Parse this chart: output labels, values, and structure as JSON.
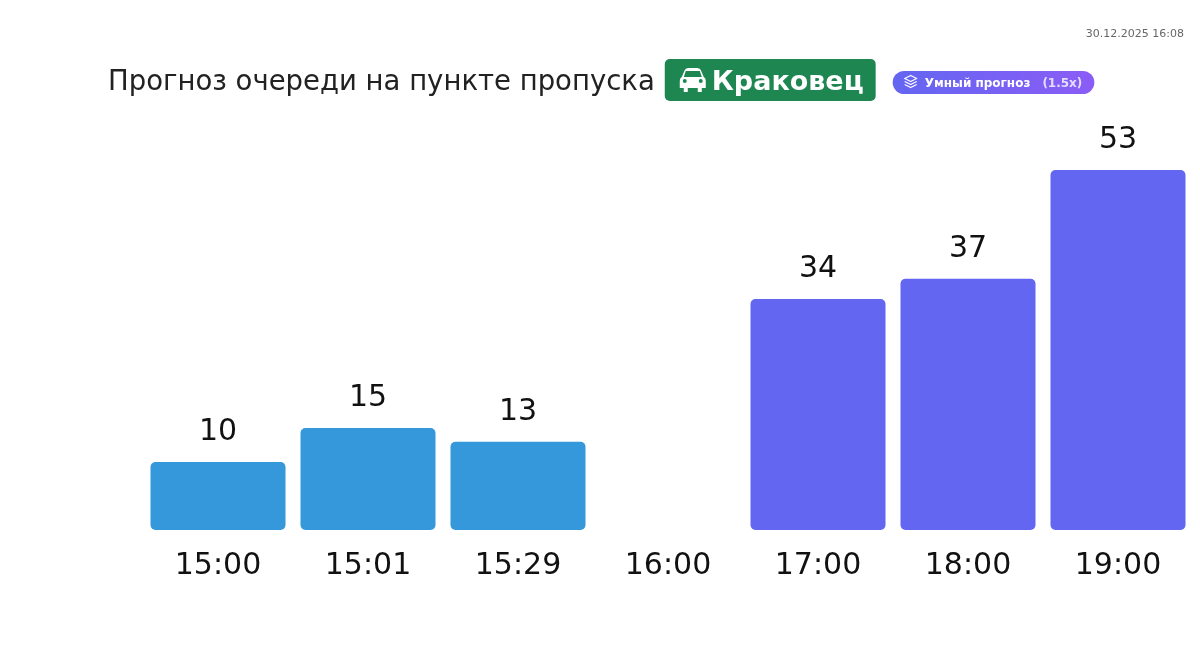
{
  "chart_data": {
    "type": "bar",
    "title": "Прогноз очереди на пункте пропуска",
    "subtitle": "Краковец",
    "annotations": [
      "Умный прогноз",
      "(1.5x)",
      "30.12.2025 16:08"
    ],
    "categories": [
      "15:00",
      "15:01",
      "15:29",
      "16:00",
      "17:00",
      "18:00",
      "19:00"
    ],
    "values": [
      10,
      15,
      13,
      null,
      34,
      37,
      53
    ],
    "colors": [
      "#3498db",
      "#3498db",
      "#3498db",
      null,
      "#6366f1",
      "#6366f1",
      "#6366f1"
    ],
    "data_labels": true
  }
}
